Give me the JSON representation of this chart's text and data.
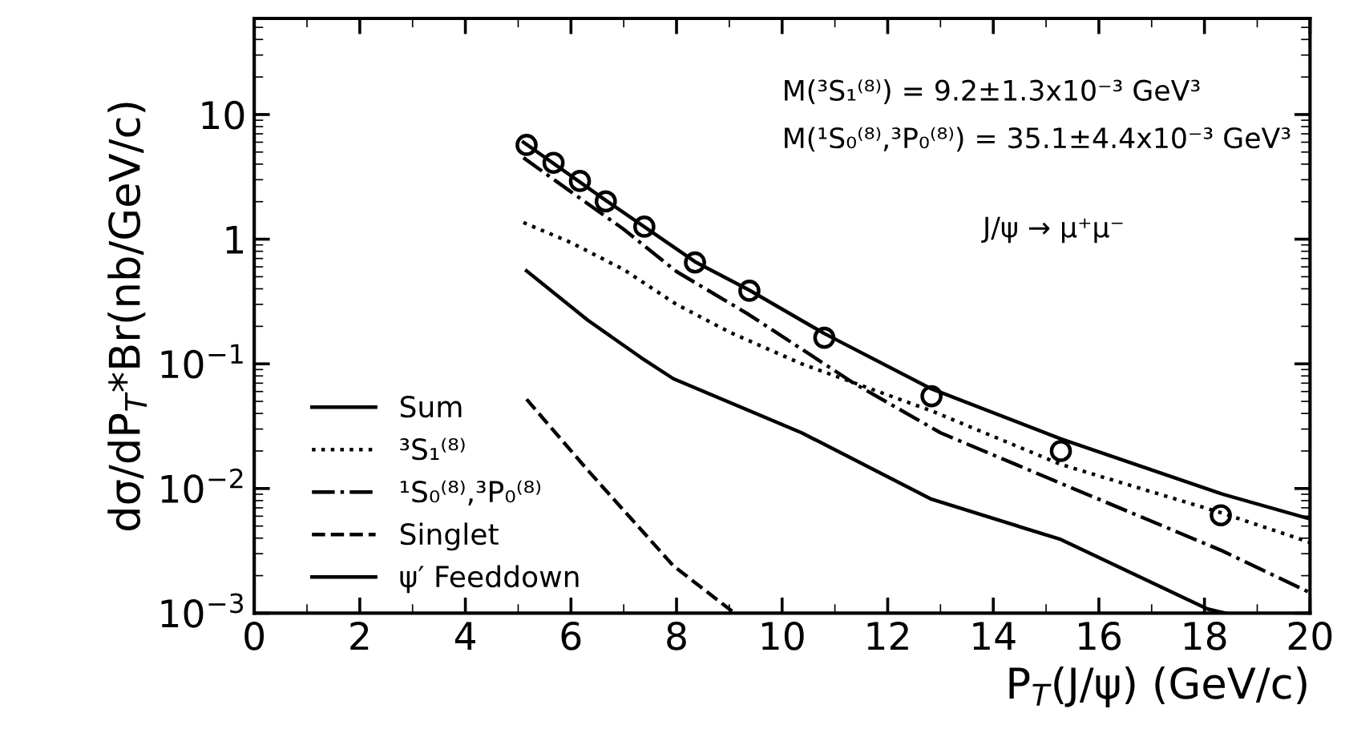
{
  "chart_data": {
    "type": "line",
    "xlabel": "P$_{T}$(J/ψ) (GeV/c)",
    "ylabel": "dσ/dP$_{T}$*Br(nb/GeV/c)",
    "log": "y",
    "xlim": [
      0,
      20
    ],
    "ylim": [
      0.001,
      59
    ],
    "xticks": [
      0,
      2,
      4,
      6,
      8,
      10,
      12,
      14,
      16,
      18,
      20
    ],
    "yticks": [
      {
        "value": 0.001,
        "label": "10$^{−3}$"
      },
      {
        "value": 0.01,
        "label": "10$^{−2}$"
      },
      {
        "value": 0.1,
        "label": "10$^{−1}$"
      },
      {
        "value": 1,
        "label": "1"
      },
      {
        "value": 10,
        "label": "10"
      }
    ],
    "grid": false,
    "legend": "bottom left",
    "annotations": [
      "M(³S₁⁽⁸⁾) = 9.2±1.3x10⁻³ GeV³",
      "M(¹S₀⁽⁸⁾,³P₀⁽⁸⁾) = 35.1±4.4x10⁻³ GeV³",
      "J/ψ → μ⁺μ⁻"
    ],
    "series": [
      {
        "name": "Sum",
        "color": "#000000",
        "line_style": "solid",
        "x": [
          5.1,
          6.66,
          8.35,
          9.38,
          10.8,
          12.83,
          15.28,
          18.31,
          20
        ],
        "values": [
          6.0,
          2.05,
          0.66,
          0.39,
          0.175,
          0.063,
          0.025,
          0.0091,
          0.0057
        ]
      },
      {
        "name": "³S₁⁽⁸⁾",
        "color": "#000000",
        "line_style": "dotted",
        "x": [
          5.1,
          6,
          7,
          8,
          9,
          10.37,
          12.83,
          15.28,
          18.31,
          20
        ],
        "values": [
          1.36,
          0.94,
          0.57,
          0.3,
          0.18,
          0.1,
          0.042,
          0.0156,
          0.0064,
          0.0037
        ]
      },
      {
        "name": "¹S₀⁽⁸⁾,³P₀⁽⁸⁾",
        "color": "#000000",
        "line_style": "dashdot",
        "x": [
          5.1,
          6,
          7,
          8,
          9.36,
          11.38,
          13,
          15.28,
          18.31,
          20
        ],
        "values": [
          4.5,
          2.4,
          1.2,
          0.55,
          0.25,
          0.069,
          0.028,
          0.011,
          0.0032,
          0.00146
        ]
      },
      {
        "name": "Singlet",
        "color": "#000000",
        "line_style": "dashed",
        "x": [
          5.16,
          6.32,
          7.94,
          9.1
        ],
        "values": [
          0.052,
          0.014,
          0.0024,
          0.001
        ]
      },
      {
        "name": "ψ′ Feeddown",
        "color": "#000000",
        "line_style": "solid",
        "x": [
          5.16,
          6.32,
          7.33,
          7.94,
          10.37,
          12.83,
          15.28,
          18.06,
          18.4
        ],
        "values": [
          0.557,
          0.224,
          0.112,
          0.076,
          0.028,
          0.0082,
          0.0039,
          0.00108,
          0.001
        ]
      },
      {
        "type": "scatter",
        "marker": "circle",
        "color": "#000000",
        "x": [
          5.16,
          5.67,
          6.17,
          6.66,
          7.39,
          8.35,
          9.38,
          10.8,
          12.83,
          15.28,
          18.31
        ],
        "values": [
          5.7,
          4.1,
          2.93,
          2.01,
          1.26,
          0.65,
          0.386,
          0.162,
          0.055,
          0.02,
          0.0061
        ]
      }
    ]
  }
}
